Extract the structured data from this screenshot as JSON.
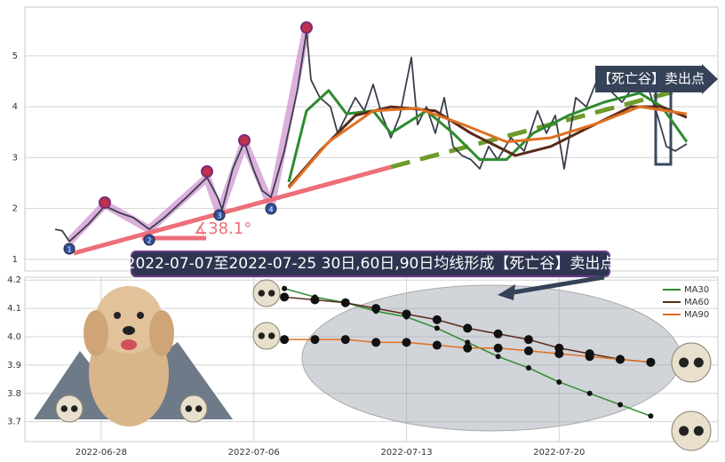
{
  "chart_data": [
    {
      "type": "line",
      "xlim": [
        0,
        780
      ],
      "ylim": [
        0.77,
        5.96
      ],
      "yticks": [
        1,
        2,
        3,
        4,
        5
      ],
      "grid": true,
      "annotations": [
        "【死亡谷】卖出点",
        "∡38.1°"
      ],
      "badges": [
        "1",
        "2",
        "3",
        "4"
      ],
      "series": [
        {
          "color": "#3a3f4c",
          "x": [
            34,
            42,
            50,
            72,
            90,
            107,
            122,
            140,
            157,
            182,
            205,
            217,
            222,
            234,
            247,
            257,
            267,
            277,
            292,
            307,
            317,
            322,
            332,
            344,
            352,
            362,
            372,
            382,
            392,
            402,
            412,
            422,
            435,
            442,
            452,
            462,
            472,
            482,
            492,
            502,
            512,
            522,
            532,
            547,
            562,
            577,
            587,
            597,
            607,
            620,
            632,
            642,
            657,
            672,
            687,
            702,
            712,
            722,
            732,
            745
          ],
          "values": [
            1.59,
            1.56,
            1.35,
            1.7,
            2.05,
            1.91,
            1.82,
            1.59,
            1.82,
            2.22,
            2.61,
            2.22,
            1.98,
            2.78,
            3.31,
            2.78,
            2.35,
            2.22,
            3.13,
            4.35,
            5.49,
            4.53,
            4.18,
            4.0,
            3.48,
            3.83,
            4.18,
            3.92,
            4.44,
            3.83,
            3.39,
            3.83,
            4.97,
            3.65,
            4.0,
            3.48,
            4.18,
            3.22,
            3.04,
            2.96,
            2.78,
            3.22,
            2.96,
            3.39,
            3.13,
            3.92,
            3.48,
            3.83,
            2.78,
            4.18,
            4.0,
            4.44,
            4.35,
            4.09,
            4.44,
            4.35,
            3.83,
            3.22,
            3.13,
            3.27
          ]
        },
        {
          "color": "#2e8b2e",
          "x": [
            297,
            317,
            342,
            362,
            392,
            412,
            452,
            482,
            512,
            542,
            572,
            612,
            652,
            692,
            717,
            745
          ],
          "values": [
            2.52,
            3.92,
            4.32,
            3.86,
            3.92,
            3.48,
            3.92,
            3.48,
            2.96,
            2.96,
            3.48,
            3.83,
            4.09,
            4.27,
            4.0,
            3.31
          ]
        },
        {
          "color": "#5a2a1a",
          "x": [
            297,
            332,
            372,
            412,
            462,
            502,
            552,
            592,
            632,
            682,
            717,
            745
          ],
          "values": [
            2.43,
            3.13,
            3.83,
            4.0,
            3.92,
            3.48,
            3.04,
            3.22,
            3.57,
            4.0,
            4.0,
            3.79
          ]
        },
        {
          "color": "#e07020",
          "x": [
            297,
            342,
            392,
            442,
            492,
            542,
            592,
            642,
            692,
            745
          ],
          "values": [
            2.4,
            3.31,
            3.92,
            3.97,
            3.66,
            3.31,
            3.39,
            3.66,
            4.0,
            3.86
          ]
        }
      ]
    },
    {
      "type": "line",
      "xlim": [
        -8.5,
        14.2
      ],
      "ylim": [
        3.63,
        4.21
      ],
      "xticks": [
        {
          "value": -6,
          "label": "2022-06-28"
        },
        {
          "value": -1,
          "label": "2022-07-06"
        },
        {
          "value": 4,
          "label": "2022-07-13"
        },
        {
          "value": 9,
          "label": "2022-07-20"
        }
      ],
      "yticks": [
        3.7,
        3.8,
        3.9,
        {
          "value": 4,
          "label": "4.0"
        },
        4.1,
        4.2
      ],
      "grid": true,
      "legend": "upper right",
      "annotations": [
        "2022-07-07至2022-07-25 30日,60日,90日均线形成【死亡谷】卖出点"
      ],
      "x": [
        0,
        1,
        2,
        3,
        4,
        5,
        6,
        7,
        8,
        9,
        10,
        11,
        12
      ],
      "series": [
        {
          "name": "MA30",
          "color": "#2e8b2e",
          "values": [
            4.17,
            4.14,
            4.12,
            4.09,
            4.07,
            4.03,
            3.98,
            3.93,
            3.89,
            3.84,
            3.8,
            3.76,
            3.72
          ]
        },
        {
          "name": "MA60",
          "color": "#5a2a1a",
          "values": [
            4.14,
            4.13,
            4.12,
            4.1,
            4.08,
            4.06,
            4.03,
            4.01,
            3.99,
            3.96,
            3.94,
            3.92,
            3.91
          ]
        },
        {
          "name": "MA90",
          "color": "#e07020",
          "values": [
            3.99,
            3.99,
            3.99,
            3.98,
            3.98,
            3.97,
            3.96,
            3.96,
            3.95,
            3.94,
            3.93,
            3.92,
            3.91
          ]
        }
      ]
    }
  ]
}
